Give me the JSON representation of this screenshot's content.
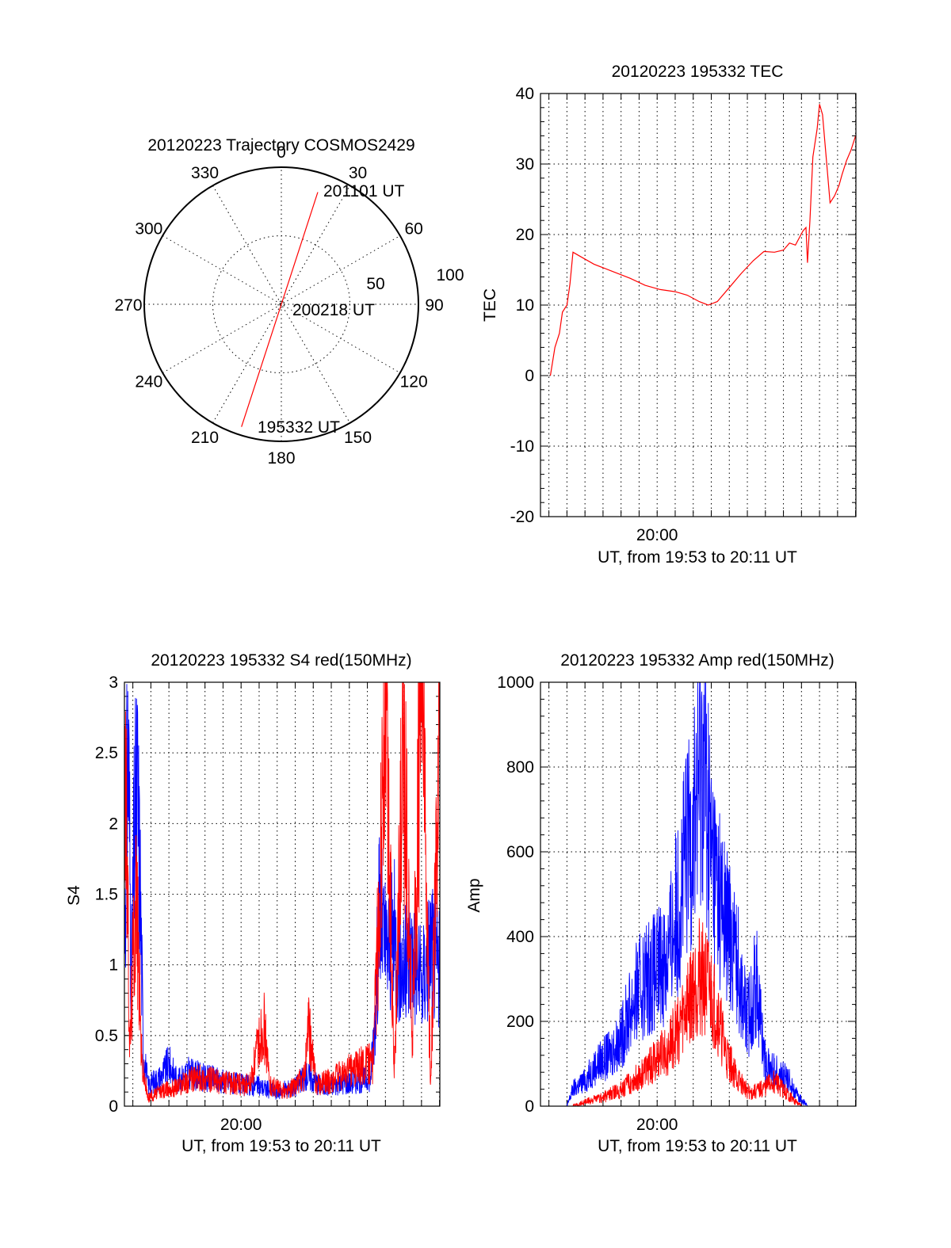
{
  "colors": {
    "red": "#ff0000",
    "blue": "#0000ff",
    "axis": "#000000"
  },
  "chart_data": [
    {
      "type": "polar",
      "title": "20120223 Trajectory COSMOS2429",
      "angle_labels": [
        "0",
        "30",
        "60",
        "90",
        "120",
        "150",
        "180",
        "210",
        "240",
        "270",
        "300",
        "330"
      ],
      "radius_labels": [
        "50",
        "100"
      ],
      "rlim": [
        0,
        100
      ],
      "grid": true,
      "trajectory": {
        "color": "red",
        "points": [
          {
            "az": 198,
            "zen": 94,
            "time": "195332 UT"
          },
          {
            "az": 18,
            "zen": 2,
            "time": "200218 UT"
          },
          {
            "az": 18,
            "zen": 86,
            "time": "201101 UT"
          }
        ]
      },
      "annotations": [
        "201101 UT",
        "200218 UT",
        "195332 UT"
      ]
    },
    {
      "type": "line",
      "title": "20120223 195332 TEC",
      "xlabel": "UT, from 19:53 to 20:11 UT",
      "ylabel": "TEC",
      "xlim": [
        "19:53:32",
        "20:11:01"
      ],
      "ylim": [
        -20,
        40
      ],
      "yticks": [
        "-20",
        "-10",
        "0",
        "10",
        "20",
        "30",
        "40"
      ],
      "xticks": [
        "20:00"
      ],
      "grid": true,
      "series": [
        {
          "color": "red",
          "points": [
            [
              "19:54:05",
              0
            ],
            [
              "19:54:20",
              4
            ],
            [
              "19:54:35",
              6
            ],
            [
              "19:54:45",
              9
            ],
            [
              "19:55:00",
              10
            ],
            [
              "19:55:10",
              13
            ],
            [
              "19:55:20",
              17.5
            ],
            [
              "19:55:40",
              17
            ],
            [
              "19:56:30",
              15.8
            ],
            [
              "19:57:30",
              14.8
            ],
            [
              "19:58:30",
              13.8
            ],
            [
              "19:59:20",
              12.8
            ],
            [
              "20:00:10",
              12.2
            ],
            [
              "20:01:00",
              11.9
            ],
            [
              "20:01:40",
              11.4
            ],
            [
              "20:02:20",
              10.5
            ],
            [
              "20:02:50",
              10.0
            ],
            [
              "20:03:20",
              10.5
            ],
            [
              "20:04:00",
              12.5
            ],
            [
              "20:04:40",
              14.5
            ],
            [
              "20:05:20",
              16.3
            ],
            [
              "20:05:55",
              17.6
            ],
            [
              "20:06:30",
              17.5
            ],
            [
              "20:07:00",
              17.8
            ],
            [
              "20:07:20",
              18.8
            ],
            [
              "20:07:40",
              18.5
            ],
            [
              "20:08:05",
              20.5
            ],
            [
              "20:08:15",
              21
            ],
            [
              "20:08:20",
              16
            ],
            [
              "20:08:28",
              22
            ],
            [
              "20:08:38",
              31
            ],
            [
              "20:08:52",
              35
            ],
            [
              "20:09:00",
              38.5
            ],
            [
              "20:09:10",
              37
            ],
            [
              "20:09:20",
              32
            ],
            [
              "20:09:35",
              24.5
            ],
            [
              "20:09:50",
              25.5
            ],
            [
              "20:10:05",
              27
            ],
            [
              "20:10:15",
              28.5
            ],
            [
              "20:10:30",
              30.5
            ],
            [
              "20:10:45",
              32
            ],
            [
              "20:11:00",
              34
            ]
          ]
        }
      ]
    },
    {
      "type": "line",
      "title": "20120223 195332 S4 red(150MHz)",
      "xlabel": "UT, from 19:53 to 20:11 UT",
      "ylabel": "S4",
      "xlim": [
        "19:53:32",
        "20:11:01"
      ],
      "ylim": [
        0,
        3
      ],
      "yticks": [
        "0",
        "0.5",
        "1",
        "1.5",
        "2",
        "2.5",
        "3"
      ],
      "xticks": [
        "20:00"
      ],
      "grid": true,
      "series": [
        {
          "color": "blue",
          "points": [
            [
              "19:53:32",
              1.3
            ],
            [
              "19:53:45",
              2.6
            ],
            [
              "19:53:55",
              0.9
            ],
            [
              "19:54:05",
              1.9
            ],
            [
              "19:54:15",
              2.2
            ],
            [
              "19:54:25",
              1.5
            ],
            [
              "19:54:35",
              0.4
            ],
            [
              "19:54:50",
              0.15
            ],
            [
              "19:55:30",
              0.2
            ],
            [
              "19:56:00",
              0.3
            ],
            [
              "19:56:30",
              0.17
            ],
            [
              "19:57:00",
              0.24
            ],
            [
              "19:58:00",
              0.2
            ],
            [
              "19:59:00",
              0.18
            ],
            [
              "20:00:00",
              0.15
            ],
            [
              "20:01:00",
              0.14
            ],
            [
              "20:02:00",
              0.1
            ],
            [
              "20:03:00",
              0.14
            ],
            [
              "20:03:40",
              0.22
            ],
            [
              "20:04:30",
              0.14
            ],
            [
              "20:05:30",
              0.16
            ],
            [
              "20:06:30",
              0.18
            ],
            [
              "20:07:10",
              0.2
            ],
            [
              "20:07:25",
              0.6
            ],
            [
              "20:07:40",
              1.4
            ],
            [
              "20:08:00",
              1.1
            ],
            [
              "20:08:30",
              1.2
            ],
            [
              "20:09:00",
              0.95
            ],
            [
              "20:09:30",
              1.1
            ],
            [
              "20:10:00",
              0.85
            ],
            [
              "20:10:30",
              1.15
            ],
            [
              "20:11:00",
              0.95
            ]
          ]
        },
        {
          "color": "red",
          "points": [
            [
              "19:53:32",
              2.8
            ],
            [
              "19:53:50",
              0.4
            ],
            [
              "19:54:10",
              1.6
            ],
            [
              "19:54:30",
              0.3
            ],
            [
              "19:54:50",
              0.06
            ],
            [
              "19:55:30",
              0.1
            ],
            [
              "19:56:30",
              0.14
            ],
            [
              "19:57:30",
              0.2
            ],
            [
              "19:58:30",
              0.18
            ],
            [
              "19:59:30",
              0.16
            ],
            [
              "20:00:30",
              0.15
            ],
            [
              "20:01:15",
              0.6
            ],
            [
              "20:01:35",
              0.15
            ],
            [
              "20:02:30",
              0.1
            ],
            [
              "20:03:30",
              0.2
            ],
            [
              "20:03:45",
              0.55
            ],
            [
              "20:04:10",
              0.15
            ],
            [
              "20:05:00",
              0.18
            ],
            [
              "20:06:00",
              0.25
            ],
            [
              "20:06:50",
              0.3
            ],
            [
              "20:07:20",
              0.3
            ],
            [
              "20:07:40",
              1.5
            ],
            [
              "20:08:00",
              2.9
            ],
            [
              "20:08:30",
              0.3
            ],
            [
              "20:09:00",
              2.6
            ],
            [
              "20:09:30",
              0.5
            ],
            [
              "20:10:00",
              3
            ],
            [
              "20:10:30",
              0.2
            ],
            [
              "20:11:00",
              2.5
            ]
          ]
        }
      ]
    },
    {
      "type": "line",
      "title": "20120223 195332 Amp red(150MHz)",
      "xlabel": "UT, from 19:53 to 20:11 UT",
      "ylabel": "Amp",
      "xlim": [
        "19:53:32",
        "20:11:01"
      ],
      "ylim": [
        0,
        1000
      ],
      "yticks": [
        "0",
        "200",
        "400",
        "600",
        "800",
        "1000"
      ],
      "xticks": [
        "20:00"
      ],
      "grid": true,
      "series": [
        {
          "color": "blue",
          "points": [
            [
              "19:54:00",
              0
            ],
            [
              "19:55:00",
              0
            ],
            [
              "19:55:20",
              40
            ],
            [
              "19:56:00",
              60
            ],
            [
              "19:56:40",
              100
            ],
            [
              "19:57:20",
              120
            ],
            [
              "19:58:00",
              160
            ],
            [
              "19:58:40",
              250
            ],
            [
              "19:59:20",
              300
            ],
            [
              "20:00:00",
              320
            ],
            [
              "20:00:40",
              370
            ],
            [
              "20:01:10",
              480
            ],
            [
              "20:01:40",
              600
            ],
            [
              "20:02:10",
              720
            ],
            [
              "20:02:30",
              850
            ],
            [
              "20:03:00",
              600
            ],
            [
              "20:03:40",
              450
            ],
            [
              "20:04:20",
              370
            ],
            [
              "20:05:00",
              200
            ],
            [
              "20:05:30",
              300
            ],
            [
              "20:06:00",
              100
            ],
            [
              "20:06:40",
              80
            ],
            [
              "20:07:20",
              60
            ],
            [
              "20:07:40",
              30
            ],
            [
              "20:08:20",
              0
            ],
            [
              "20:11:00",
              0
            ]
          ]
        },
        {
          "color": "red",
          "points": [
            [
              "19:55:20",
              0
            ],
            [
              "19:56:00",
              10
            ],
            [
              "19:57:00",
              20
            ],
            [
              "19:58:00",
              40
            ],
            [
              "19:59:00",
              70
            ],
            [
              "20:00:00",
              110
            ],
            [
              "20:00:40",
              140
            ],
            [
              "20:01:20",
              200
            ],
            [
              "20:01:50",
              260
            ],
            [
              "20:02:20",
              310
            ],
            [
              "20:02:50",
              280
            ],
            [
              "20:03:20",
              220
            ],
            [
              "20:03:50",
              120
            ],
            [
              "20:04:30",
              60
            ],
            [
              "20:05:10",
              30
            ],
            [
              "20:05:50",
              40
            ],
            [
              "20:06:30",
              60
            ],
            [
              "20:07:10",
              30
            ],
            [
              "20:07:40",
              10
            ],
            [
              "20:08:00",
              0
            ]
          ]
        }
      ]
    }
  ]
}
